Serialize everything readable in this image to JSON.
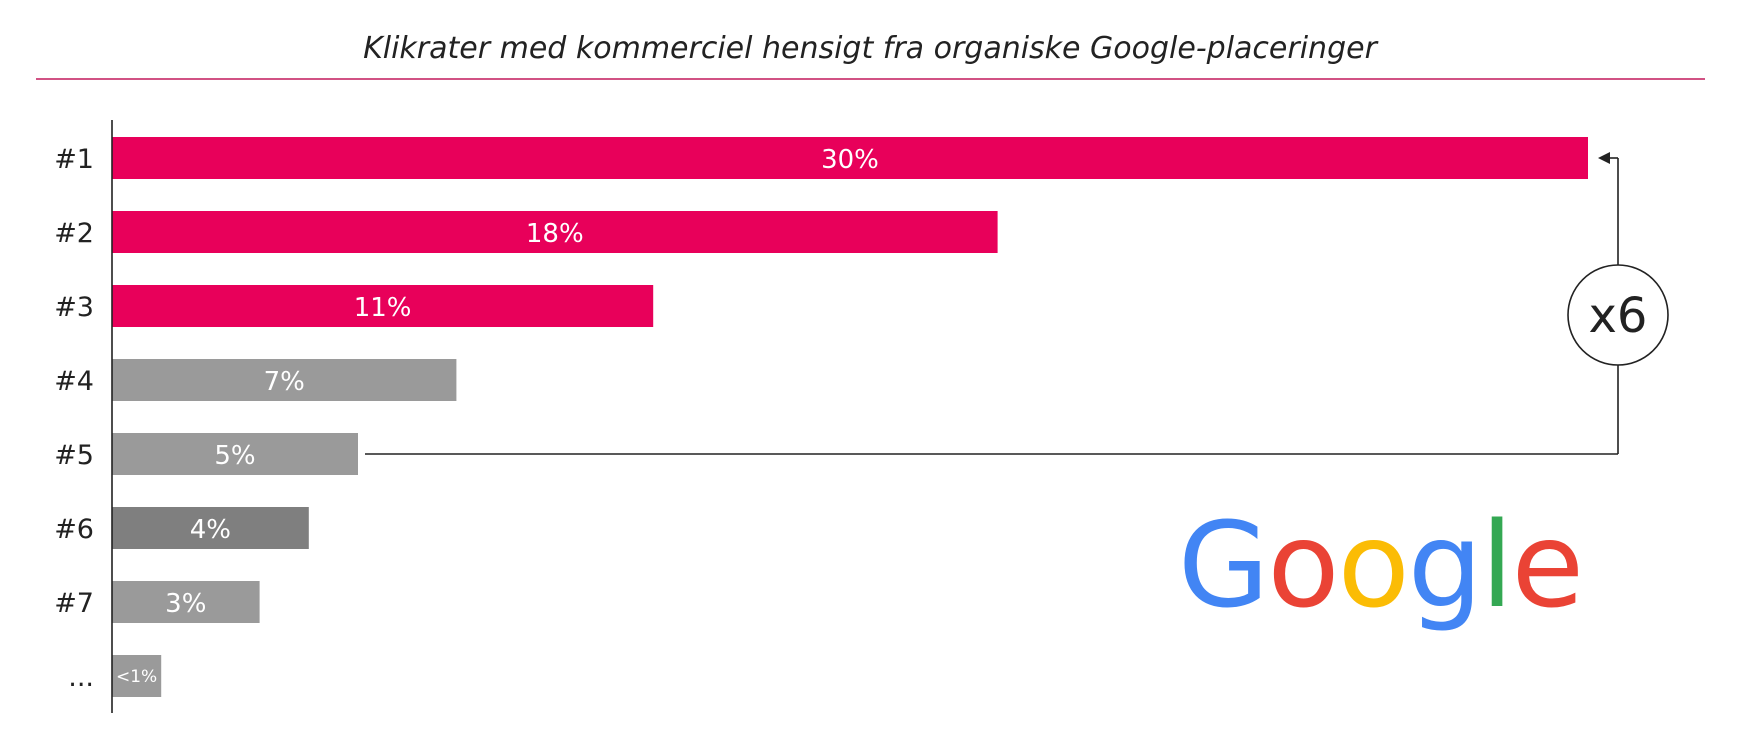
{
  "chart_data": {
    "type": "bar",
    "orientation": "horizontal",
    "title": "Klikrater med kommerciel hensigt fra organiske Google-placeringer",
    "categories": [
      "#1",
      "#2",
      "#3",
      "#4",
      "#5",
      "#6",
      "#7",
      "..."
    ],
    "values": [
      30,
      18,
      11,
      7,
      5,
      4,
      3,
      1
    ],
    "data_labels": [
      "30%",
      "18%",
      "11%",
      "7%",
      "5%",
      "4%",
      "3%",
      "<1%"
    ],
    "bar_colors": [
      "#e8005a",
      "#e8005a",
      "#e8005a",
      "#9a9a9a",
      "#9a9a9a",
      "#7f7f7f",
      "#9a9a9a",
      "#9a9a9a"
    ],
    "xlim": [
      0,
      30
    ],
    "grid": false,
    "legend": "none",
    "annotation": {
      "label": "x6",
      "from_category": "#5",
      "to_category": "#1"
    },
    "logo": {
      "text": "Google",
      "letter_colors": [
        "#4285F4",
        "#EA4335",
        "#FBBC05",
        "#4285F4",
        "#34A853",
        "#EA4335"
      ]
    }
  },
  "colors": {
    "accent": "#e8005a",
    "title_rule": "#c2185b",
    "axis": "#222222",
    "text": "#222222"
  }
}
